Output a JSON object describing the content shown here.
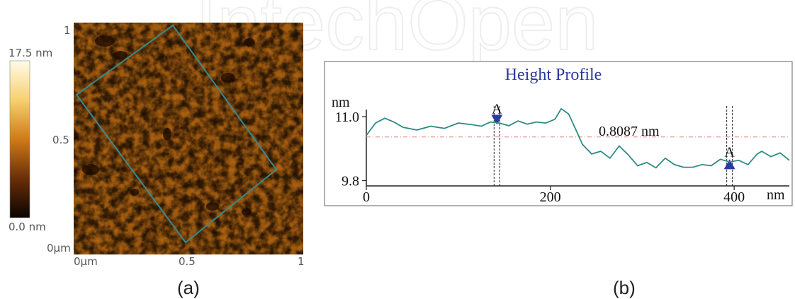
{
  "watermark": "IntechOpen",
  "panel_a": {
    "caption": "(a)",
    "colorbar": {
      "max_label": "17.5 nm",
      "min_label": "0.0 nm"
    },
    "y_ticks": [
      "1",
      "0.5",
      "0μm"
    ],
    "x_ticks": [
      "0μm",
      "0.5",
      "1"
    ],
    "colors": {
      "dark": "#1a0a00",
      "mid": "#c86c10",
      "bright": "#fff6b0",
      "line": "#3a8a8a"
    }
  },
  "panel_b": {
    "caption": "(b)"
  },
  "chart_data": {
    "type": "line",
    "title": "Height Profile",
    "xlabel": "nm",
    "ylabel": "nm",
    "xlim": [
      0,
      460
    ],
    "ylim": [
      9.7,
      11.2
    ],
    "x_ticks": [
      "0",
      "200",
      "400"
    ],
    "y_ticks": [
      "11.0",
      "9.8"
    ],
    "annotation": "0.8087 nm",
    "reference_level": 10.62,
    "markers": [
      {
        "label": "A",
        "x": 142,
        "y": 10.93,
        "direction": "down"
      },
      {
        "label": "A",
        "x": 395,
        "y": 10.12,
        "direction": "up"
      }
    ],
    "line_color": "#2e8b86",
    "ref_color": "#e08080",
    "marker_color": "#2a3aa0",
    "series": [
      {
        "x": [
          0,
          10,
          20,
          30,
          40,
          55,
          70,
          85,
          100,
          115,
          125,
          135,
          145,
          155,
          165,
          175,
          185,
          195,
          205,
          212,
          220,
          228,
          235,
          245,
          255,
          265,
          275,
          285,
          295,
          305,
          315,
          325,
          335,
          345,
          355,
          365,
          375,
          385,
          395,
          405,
          415,
          425,
          430,
          440,
          450,
          460
        ],
        "y": [
          10.65,
          10.88,
          10.97,
          10.9,
          10.8,
          10.75,
          10.82,
          10.78,
          10.88,
          10.85,
          10.82,
          10.9,
          10.88,
          10.83,
          10.92,
          10.86,
          10.9,
          10.88,
          10.95,
          11.15,
          11.05,
          10.75,
          10.48,
          10.3,
          10.35,
          10.22,
          10.45,
          10.28,
          10.08,
          10.14,
          10.04,
          10.22,
          10.1,
          10.05,
          10.05,
          10.1,
          10.08,
          10.2,
          10.15,
          10.18,
          10.1,
          10.3,
          10.35,
          10.25,
          10.32,
          10.18
        ]
      }
    ]
  }
}
